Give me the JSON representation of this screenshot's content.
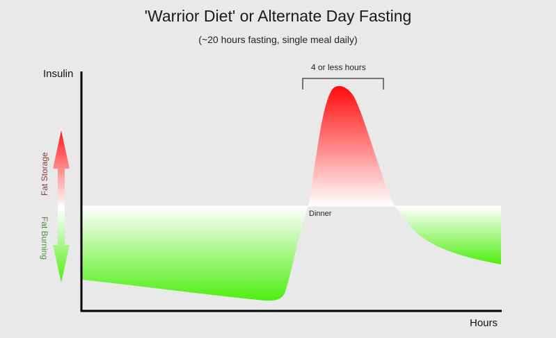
{
  "title": "'Warrior Diet' or Alternate Day Fasting",
  "subtitle": "(~20 hours fasting, single meal daily)",
  "y_axis_label": "Insulin",
  "x_axis_label": "Hours",
  "annotations": {
    "eating_window": "4 or less hours",
    "meal": "Dinner",
    "fat_storage": "Fat Storage",
    "fat_burning": "Fat Burning"
  },
  "colors": {
    "storage": "#ff1a1a",
    "burning": "#55ee1a",
    "background": "#e9e9e9"
  }
}
